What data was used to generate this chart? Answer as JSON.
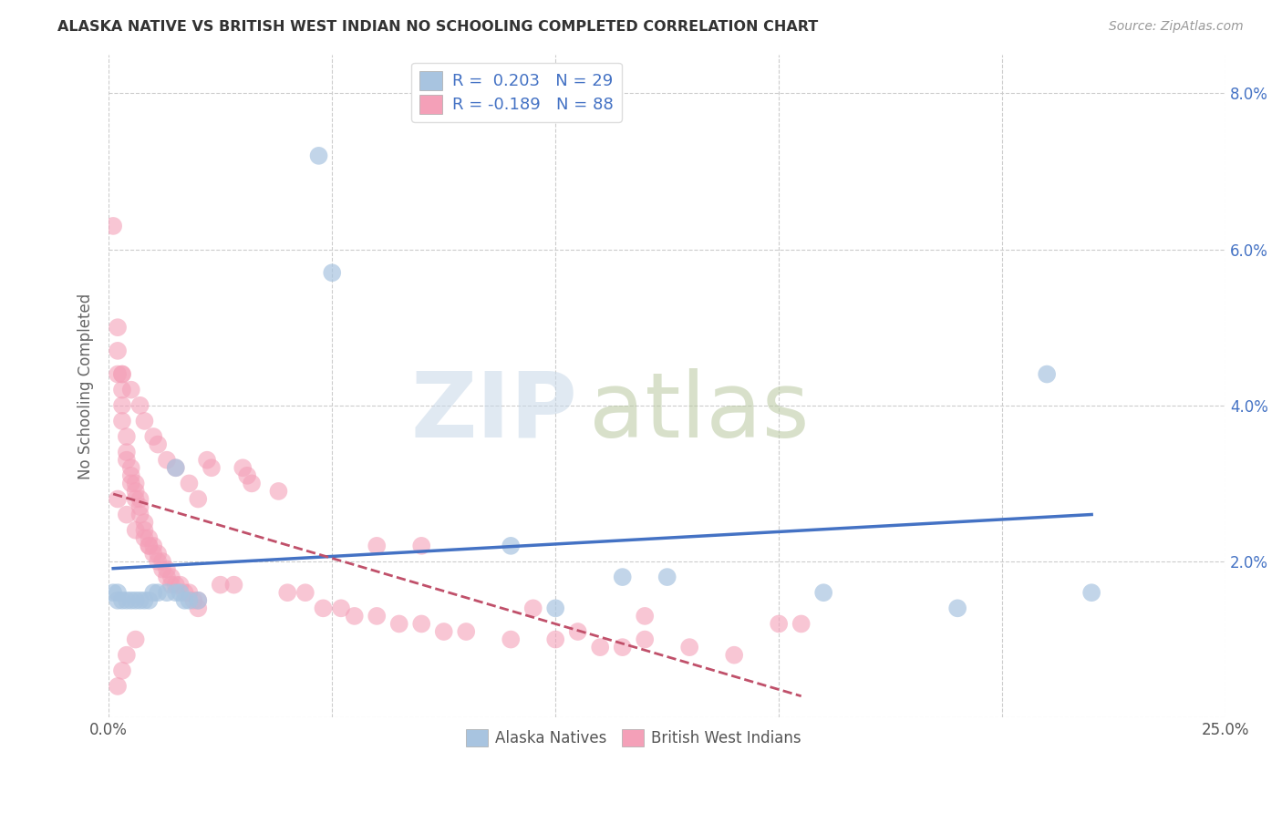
{
  "title": "ALASKA NATIVE VS BRITISH WEST INDIAN NO SCHOOLING COMPLETED CORRELATION CHART",
  "source": "Source: ZipAtlas.com",
  "ylabel": "No Schooling Completed",
  "xlim": [
    0.0,
    0.25
  ],
  "ylim": [
    0.0,
    0.085
  ],
  "alaska_color": "#a8c4e0",
  "bwi_color": "#f4a0b8",
  "alaska_line_color": "#4472c4",
  "bwi_line_color": "#c0506a",
  "watermark_zip_color": "#ccd8e8",
  "watermark_atlas_color": "#c8d8a8",
  "alaska_scatter": [
    [
      0.001,
      0.016
    ],
    [
      0.002,
      0.016
    ],
    [
      0.002,
      0.015
    ],
    [
      0.003,
      0.015
    ],
    [
      0.004,
      0.015
    ],
    [
      0.005,
      0.015
    ],
    [
      0.006,
      0.015
    ],
    [
      0.007,
      0.015
    ],
    [
      0.008,
      0.015
    ],
    [
      0.009,
      0.015
    ],
    [
      0.01,
      0.016
    ],
    [
      0.011,
      0.016
    ],
    [
      0.013,
      0.016
    ],
    [
      0.015,
      0.016
    ],
    [
      0.016,
      0.016
    ],
    [
      0.017,
      0.015
    ],
    [
      0.018,
      0.015
    ],
    [
      0.02,
      0.015
    ],
    [
      0.015,
      0.032
    ],
    [
      0.047,
      0.072
    ],
    [
      0.05,
      0.057
    ],
    [
      0.09,
      0.022
    ],
    [
      0.1,
      0.014
    ],
    [
      0.115,
      0.018
    ],
    [
      0.125,
      0.018
    ],
    [
      0.16,
      0.016
    ],
    [
      0.19,
      0.014
    ],
    [
      0.21,
      0.044
    ],
    [
      0.22,
      0.016
    ]
  ],
  "bwi_scatter": [
    [
      0.001,
      0.063
    ],
    [
      0.002,
      0.05
    ],
    [
      0.002,
      0.047
    ],
    [
      0.002,
      0.044
    ],
    [
      0.003,
      0.044
    ],
    [
      0.003,
      0.042
    ],
    [
      0.003,
      0.04
    ],
    [
      0.003,
      0.038
    ],
    [
      0.004,
      0.036
    ],
    [
      0.004,
      0.034
    ],
    [
      0.004,
      0.033
    ],
    [
      0.005,
      0.032
    ],
    [
      0.005,
      0.031
    ],
    [
      0.005,
      0.03
    ],
    [
      0.006,
      0.03
    ],
    [
      0.006,
      0.029
    ],
    [
      0.006,
      0.028
    ],
    [
      0.007,
      0.028
    ],
    [
      0.007,
      0.027
    ],
    [
      0.007,
      0.026
    ],
    [
      0.008,
      0.025
    ],
    [
      0.008,
      0.024
    ],
    [
      0.008,
      0.023
    ],
    [
      0.009,
      0.023
    ],
    [
      0.009,
      0.022
    ],
    [
      0.01,
      0.022
    ],
    [
      0.01,
      0.021
    ],
    [
      0.011,
      0.021
    ],
    [
      0.011,
      0.02
    ],
    [
      0.012,
      0.02
    ],
    [
      0.012,
      0.019
    ],
    [
      0.013,
      0.019
    ],
    [
      0.013,
      0.018
    ],
    [
      0.014,
      0.018
    ],
    [
      0.014,
      0.017
    ],
    [
      0.015,
      0.017
    ],
    [
      0.016,
      0.017
    ],
    [
      0.017,
      0.016
    ],
    [
      0.018,
      0.016
    ],
    [
      0.019,
      0.015
    ],
    [
      0.02,
      0.015
    ],
    [
      0.02,
      0.014
    ],
    [
      0.003,
      0.044
    ],
    [
      0.005,
      0.042
    ],
    [
      0.007,
      0.04
    ],
    [
      0.008,
      0.038
    ],
    [
      0.01,
      0.036
    ],
    [
      0.011,
      0.035
    ],
    [
      0.013,
      0.033
    ],
    [
      0.015,
      0.032
    ],
    [
      0.018,
      0.03
    ],
    [
      0.02,
      0.028
    ],
    [
      0.022,
      0.033
    ],
    [
      0.023,
      0.032
    ],
    [
      0.025,
      0.017
    ],
    [
      0.028,
      0.017
    ],
    [
      0.03,
      0.032
    ],
    [
      0.031,
      0.031
    ],
    [
      0.032,
      0.03
    ],
    [
      0.038,
      0.029
    ],
    [
      0.04,
      0.016
    ],
    [
      0.044,
      0.016
    ],
    [
      0.048,
      0.014
    ],
    [
      0.052,
      0.014
    ],
    [
      0.055,
      0.013
    ],
    [
      0.06,
      0.013
    ],
    [
      0.065,
      0.012
    ],
    [
      0.07,
      0.012
    ],
    [
      0.075,
      0.011
    ],
    [
      0.08,
      0.011
    ],
    [
      0.09,
      0.01
    ],
    [
      0.1,
      0.01
    ],
    [
      0.11,
      0.009
    ],
    [
      0.115,
      0.009
    ],
    [
      0.06,
      0.022
    ],
    [
      0.07,
      0.022
    ],
    [
      0.095,
      0.014
    ],
    [
      0.12,
      0.013
    ],
    [
      0.105,
      0.011
    ],
    [
      0.12,
      0.01
    ],
    [
      0.13,
      0.009
    ],
    [
      0.14,
      0.008
    ],
    [
      0.15,
      0.012
    ],
    [
      0.155,
      0.012
    ],
    [
      0.002,
      0.028
    ],
    [
      0.004,
      0.026
    ],
    [
      0.006,
      0.024
    ],
    [
      0.009,
      0.022
    ],
    [
      0.002,
      0.004
    ],
    [
      0.003,
      0.006
    ],
    [
      0.004,
      0.008
    ],
    [
      0.006,
      0.01
    ]
  ]
}
